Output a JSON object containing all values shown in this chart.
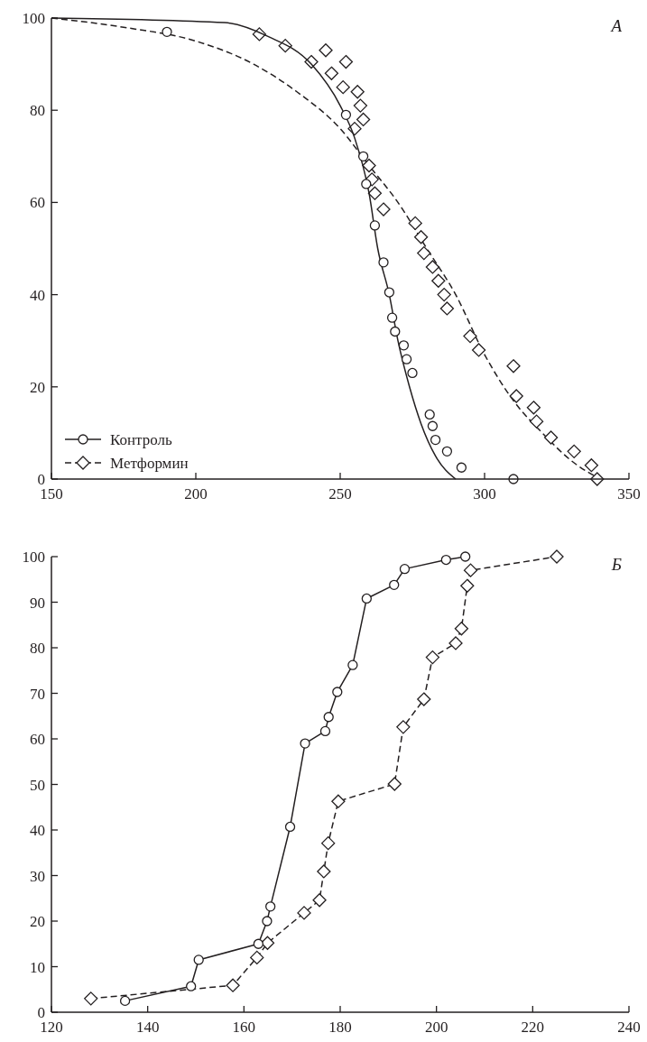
{
  "chart_data": [
    {
      "type": "scatter",
      "title": "А",
      "xlim": [
        150,
        350
      ],
      "xticks": [
        150,
        200,
        250,
        300,
        350
      ],
      "ylim": [
        0,
        100
      ],
      "yticks": [
        0,
        20,
        40,
        60,
        80,
        100
      ],
      "grid": false,
      "legend": "bottom left",
      "series": [
        {
          "name": "Контроль",
          "marker": "circle",
          "line_style": "solid",
          "color": "#231f20",
          "x": [
            190,
            252,
            258,
            259,
            262,
            265,
            267,
            268,
            269,
            272,
            273,
            275,
            281,
            282,
            283,
            287,
            292,
            310
          ],
          "values": [
            97,
            79,
            70,
            64,
            55,
            47,
            40.5,
            35,
            32,
            29,
            26,
            23,
            14,
            11.5,
            8.5,
            6,
            2.5,
            0
          ]
        },
        {
          "type": "line",
          "line_style": "solid",
          "marker": "none",
          "color": "#231f20",
          "x": [
            150,
            210,
            225,
            240,
            250,
            255,
            260,
            263,
            267,
            270,
            274,
            278,
            283,
            290
          ],
          "values": [
            100,
            99,
            96,
            90,
            81,
            74,
            62,
            50,
            40,
            30,
            20,
            12,
            5,
            0
          ]
        },
        {
          "name": "Метформин",
          "marker": "diamond",
          "line_style": "dashed",
          "color": "#231f20",
          "x": [
            222,
            231,
            240,
            245,
            247,
            251,
            252,
            255,
            256,
            257,
            258,
            260,
            261,
            262,
            265,
            276,
            278,
            279,
            282,
            284,
            286,
            287,
            295,
            298,
            310,
            311,
            317,
            318,
            323,
            331,
            337,
            339
          ],
          "values": [
            96.5,
            94,
            90.5,
            93,
            88,
            85,
            90.5,
            76,
            84,
            81,
            78,
            68,
            65,
            62,
            58.5,
            55.5,
            52.5,
            49,
            46,
            43,
            40,
            37,
            31,
            28,
            24.5,
            18,
            15.5,
            12.5,
            9,
            6,
            3,
            0
          ]
        },
        {
          "type": "line",
          "line_style": "dashed",
          "marker": "none",
          "color": "#231f20",
          "x": [
            150,
            175,
            200,
            220,
            235,
            250,
            260,
            270,
            280,
            290,
            300,
            310,
            320,
            330,
            340
          ],
          "values": [
            100,
            98,
            95,
            90,
            84,
            76,
            68,
            60,
            50,
            40,
            27,
            17,
            10,
            4,
            0
          ]
        }
      ]
    },
    {
      "type": "line",
      "title": "Б",
      "xlim": [
        120,
        240
      ],
      "xticks": [
        120,
        140,
        160,
        180,
        200,
        220,
        240
      ],
      "ylim": [
        0,
        100
      ],
      "yticks": [
        0,
        10,
        20,
        30,
        40,
        50,
        60,
        70,
        80,
        90,
        100
      ],
      "grid": false,
      "series": [
        {
          "marker": "circle",
          "line_style": "solid",
          "color": "#231f20",
          "x": [
            135.3,
            149,
            150.6,
            163,
            164.8,
            165.5,
            169.6,
            172.7,
            176.9,
            177.6,
            179.4,
            182.6,
            185.5,
            191.2,
            193.4,
            202,
            206
          ],
          "values": [
            2.5,
            5.7,
            11.5,
            15,
            20,
            23.2,
            40.7,
            59,
            61.7,
            64.8,
            70.3,
            76.2,
            90.8,
            93.8,
            97.3,
            99.3,
            100
          ]
        },
        {
          "marker": "diamond",
          "line_style": "dashed",
          "color": "#231f20",
          "x": [
            128.2,
            157.7,
            162.7,
            164.9,
            172.5,
            175.7,
            176.6,
            177.5,
            179.6,
            191.3,
            193.1,
            197.4,
            199.2,
            204,
            205.2,
            206.4,
            207.1,
            225
          ],
          "values": [
            3,
            5.9,
            12,
            15.2,
            21.8,
            24.6,
            30.9,
            37.1,
            46.3,
            50.1,
            62.6,
            68.7,
            77.9,
            81,
            84.2,
            93.6,
            97,
            100
          ]
        }
      ]
    }
  ]
}
